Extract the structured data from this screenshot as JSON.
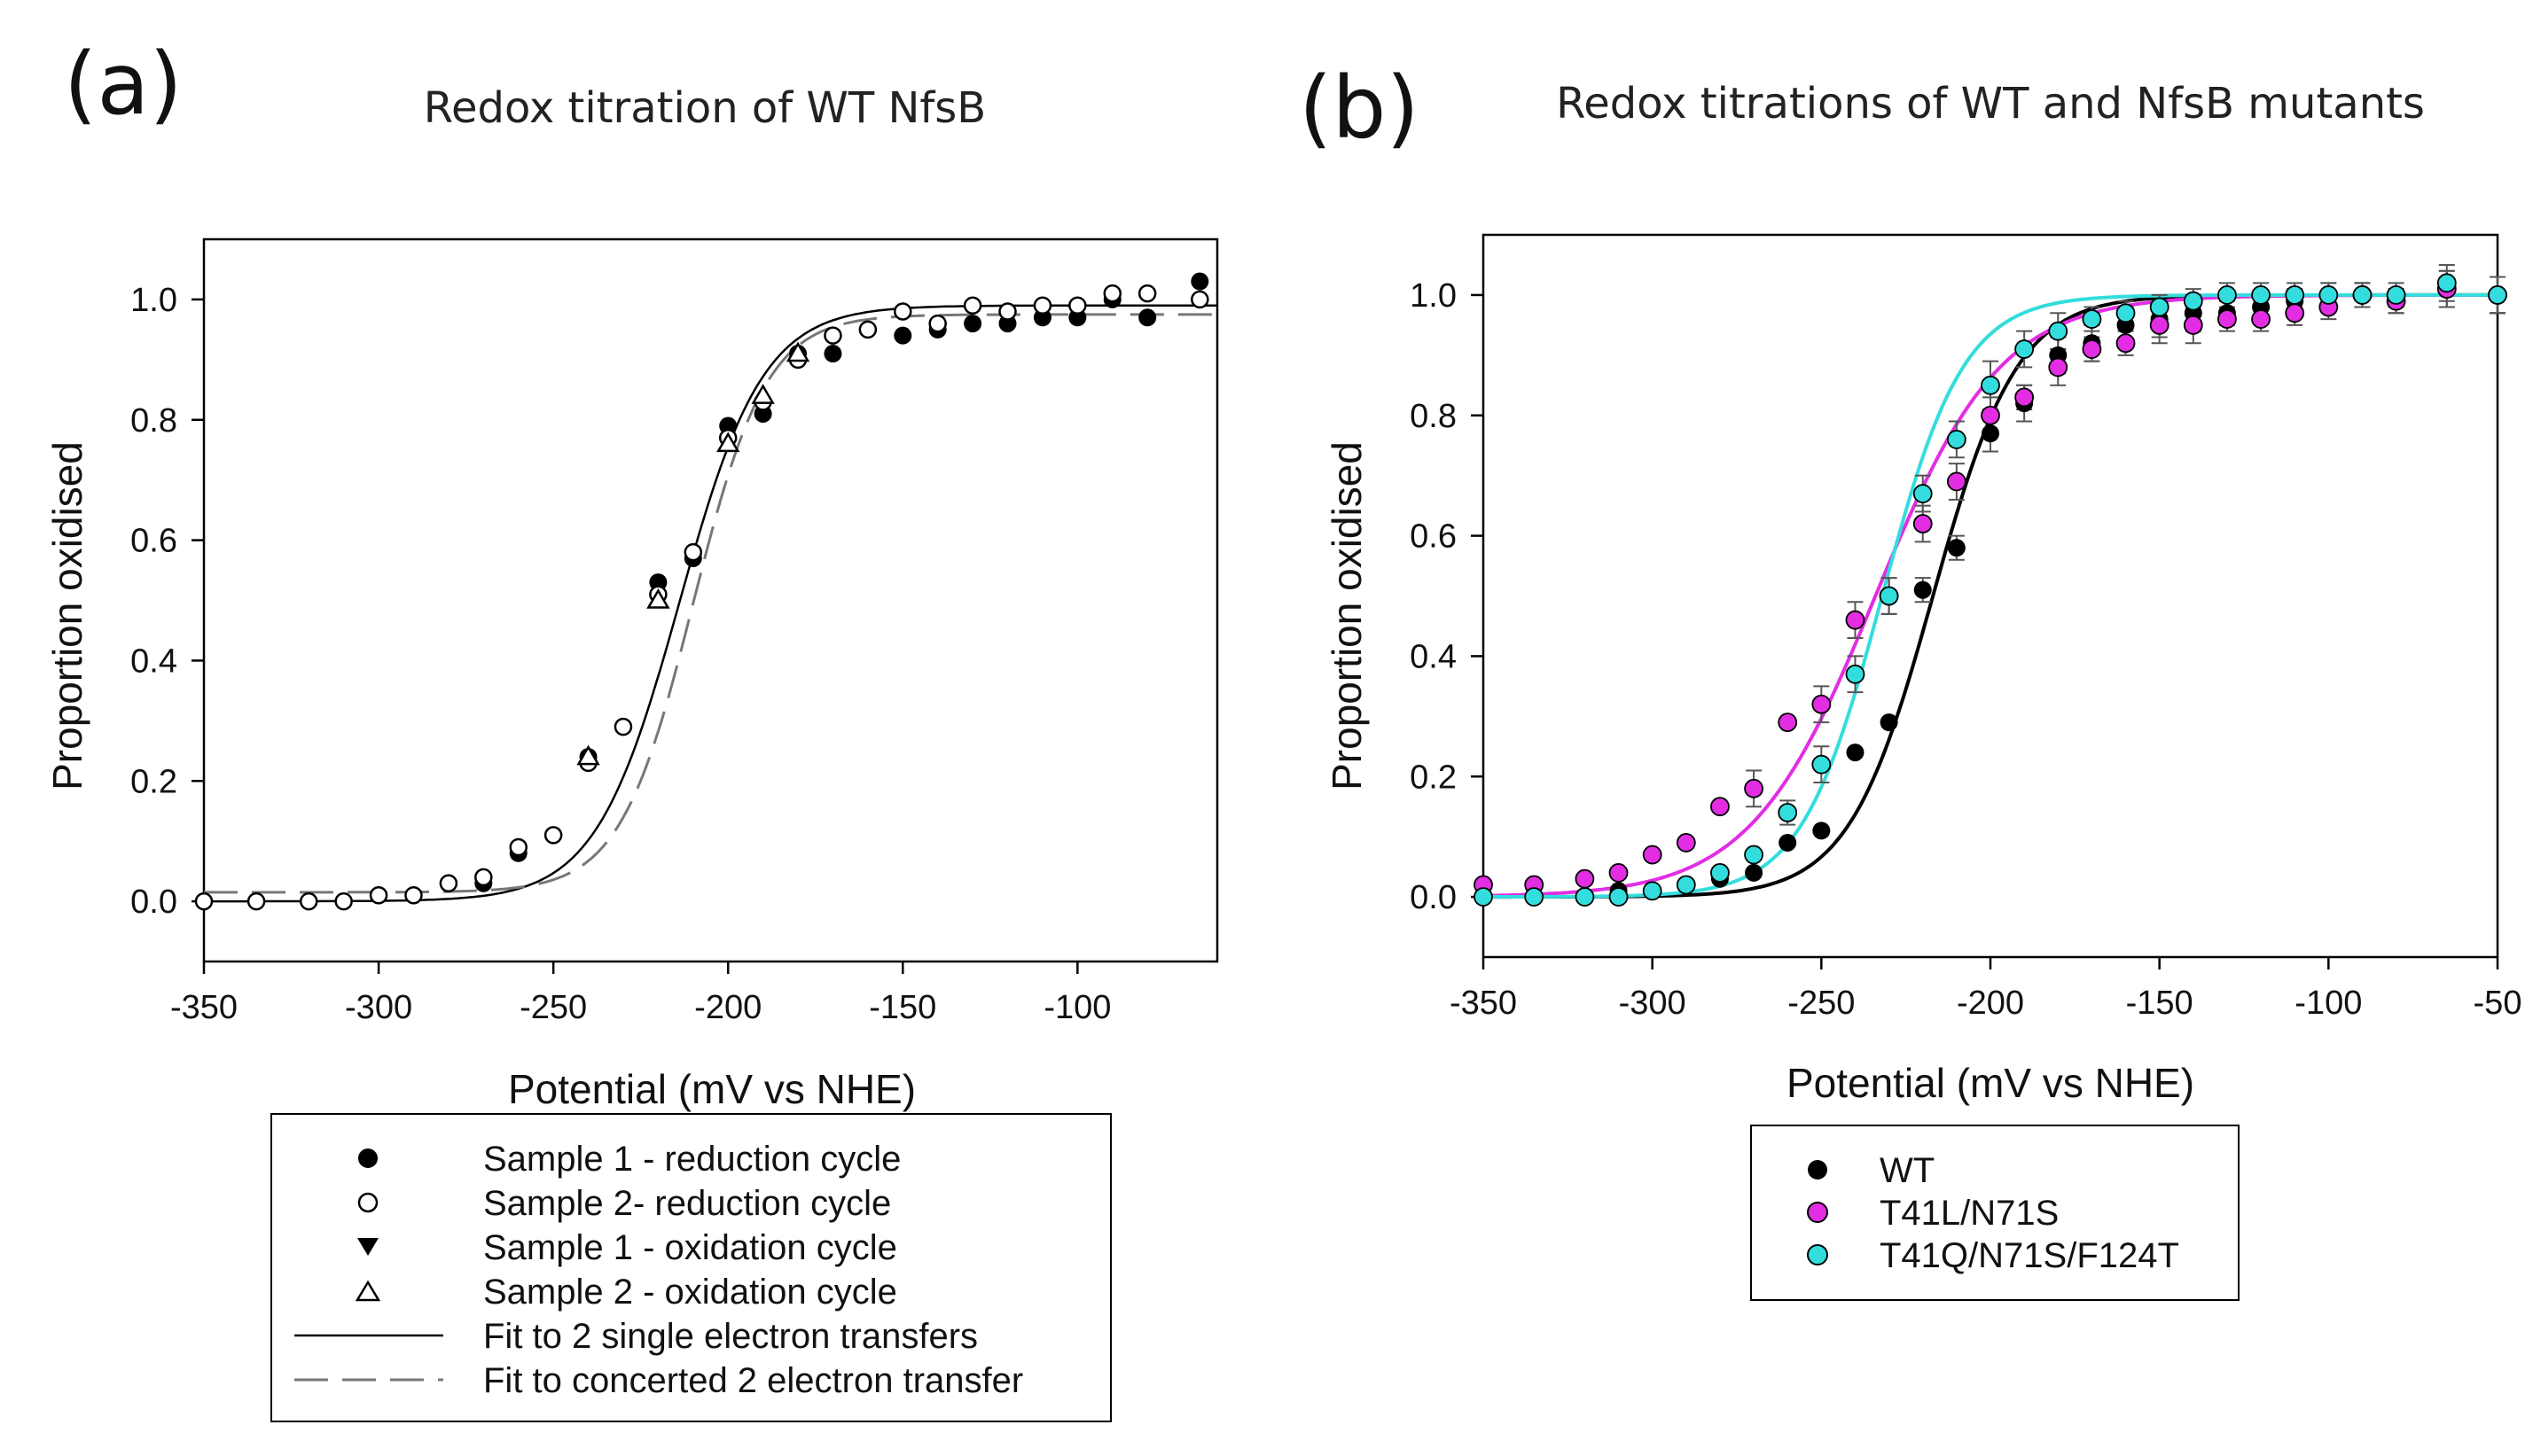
{
  "chart_data": [
    {
      "panel": "(a)",
      "type": "scatter",
      "title": "Redox titration of WT NfsB",
      "xlabel": "Potential (mV vs NHE)",
      "ylabel": "Proportion oxidised",
      "xlim": [
        -350,
        -60
      ],
      "ylim": [
        -0.1,
        1.1
      ],
      "xticks": [
        -350,
        -300,
        -250,
        -200,
        -150,
        -100
      ],
      "yticks": [
        0.0,
        0.2,
        0.4,
        0.6,
        0.8,
        1.0
      ],
      "series": [
        {
          "name": "Sample 1 - reduction cycle",
          "marker": "filled-circle",
          "color": "#000000",
          "x": [
            -350,
            -335,
            -320,
            -310,
            -300,
            -290,
            -280,
            -270,
            -260,
            -250,
            -240,
            -230,
            -220,
            -210,
            -200,
            -190,
            -180,
            -170,
            -150,
            -140,
            -130,
            -120,
            -110,
            -100,
            -90,
            -80,
            -65
          ],
          "y": [
            0.0,
            0.0,
            0.0,
            0.0,
            0.01,
            0.01,
            0.03,
            0.03,
            0.08,
            0.11,
            0.24,
            0.29,
            0.53,
            0.57,
            0.79,
            0.81,
            0.91,
            0.91,
            0.94,
            0.95,
            0.96,
            0.96,
            0.97,
            0.97,
            1.0,
            0.97,
            1.03
          ]
        },
        {
          "name": "Sample 2-  reduction cycle",
          "marker": "open-circle",
          "color": "#000000",
          "x": [
            -350,
            -335,
            -320,
            -310,
            -300,
            -290,
            -280,
            -270,
            -260,
            -250,
            -240,
            -230,
            -220,
            -210,
            -200,
            -190,
            -180,
            -170,
            -160,
            -150,
            -140,
            -130,
            -120,
            -110,
            -100,
            -90,
            -80,
            -65
          ],
          "y": [
            0.0,
            0.0,
            0.0,
            0.0,
            0.01,
            0.01,
            0.03,
            0.04,
            0.09,
            0.11,
            0.23,
            0.29,
            0.51,
            0.58,
            0.77,
            0.83,
            0.9,
            0.94,
            0.95,
            0.98,
            0.96,
            0.99,
            0.98,
            0.99,
            0.99,
            1.01,
            1.01,
            1.0
          ]
        },
        {
          "name": "Sample 1 - oxidation cycle",
          "marker": "filled-triangle-down",
          "color": "#000000",
          "x": [],
          "y": []
        },
        {
          "name": "Sample 2 - oxidation cycle",
          "marker": "open-triangle-up",
          "color": "#000000",
          "x": [
            -240,
            -220,
            -200,
            -190,
            -180
          ],
          "y": [
            0.24,
            0.5,
            0.76,
            0.84,
            0.91
          ]
        },
        {
          "name": "Fit to 2 single electron transfers",
          "line": "solid",
          "color": "#000000",
          "midpoint": -214,
          "width": 12,
          "y_min": 0.0,
          "y_max": 0.99
        },
        {
          "name": "Fit to concerted 2 electron transfer",
          "line": "dashed",
          "color": "#777777",
          "midpoint": -210,
          "width": 10.5,
          "y_min": 0.015,
          "y_max": 0.975
        }
      ]
    },
    {
      "panel": "(b)",
      "type": "scatter",
      "title": "Redox titrations of WT and NfsB mutants",
      "xlabel": "Potential (mV vs NHE)",
      "ylabel": "Proportion oxidised",
      "xlim": [
        -350,
        -50
      ],
      "ylim": [
        -0.1,
        1.1
      ],
      "xticks": [
        -350,
        -300,
        -250,
        -200,
        -150,
        -100,
        -50
      ],
      "yticks": [
        0.0,
        0.2,
        0.4,
        0.6,
        0.8,
        1.0
      ],
      "series": [
        {
          "name": "WT",
          "marker": "filled-circle",
          "color": "#000000",
          "x": [
            -350,
            -335,
            -320,
            -310,
            -300,
            -290,
            -280,
            -270,
            -260,
            -250,
            -240,
            -230,
            -220,
            -210,
            -200,
            -190,
            -180,
            -170,
            -160,
            -150,
            -140,
            -130,
            -120,
            -110,
            -100,
            -90,
            -80,
            -65,
            -50
          ],
          "y": [
            0.0,
            0.0,
            0.0,
            0.01,
            0.01,
            0.02,
            0.03,
            0.04,
            0.09,
            0.11,
            0.24,
            0.29,
            0.51,
            0.58,
            0.77,
            0.82,
            0.9,
            0.92,
            0.95,
            0.96,
            0.97,
            0.97,
            0.98,
            0.99,
            1.0,
            1.0,
            0.99,
            1.01,
            1.0
          ],
          "err": [
            0,
            0,
            0,
            0,
            0,
            0,
            0,
            0,
            0,
            0,
            0,
            0,
            0.02,
            0.02,
            0.03,
            0.03,
            0.03,
            0.03,
            0.03,
            0.03,
            0.03,
            0.02,
            0.02,
            0.02,
            0.02,
            0.02,
            0.02,
            0.03,
            0.03
          ],
          "fit": {
            "midpoint": -217,
            "width": 12.5
          }
        },
        {
          "name": "T41L/N71S",
          "marker": "filled-circle",
          "color": "#e22de2",
          "x": [
            -350,
            -335,
            -320,
            -310,
            -300,
            -290,
            -280,
            -270,
            -260,
            -250,
            -240,
            -230,
            -220,
            -210,
            -200,
            -190,
            -180,
            -170,
            -160,
            -150,
            -140,
            -130,
            -120,
            -110,
            -100,
            -90,
            -80,
            -65,
            -50
          ],
          "y": [
            0.02,
            0.02,
            0.03,
            0.04,
            0.07,
            0.09,
            0.15,
            0.18,
            0.29,
            0.32,
            0.46,
            0.5,
            0.62,
            0.69,
            0.8,
            0.83,
            0.88,
            0.91,
            0.92,
            0.95,
            0.95,
            0.96,
            0.96,
            0.97,
            0.98,
            1.0,
            0.99,
            1.01,
            1.0
          ],
          "err": [
            0,
            0,
            0,
            0,
            0,
            0,
            0,
            0.03,
            0,
            0.03,
            0.03,
            0.03,
            0.03,
            0.03,
            0.03,
            0.02,
            0.03,
            0.02,
            0.02,
            0.03,
            0.03,
            0.02,
            0.02,
            0.02,
            0.02,
            0.02,
            0.02,
            0.03,
            0.03
          ],
          "fit": {
            "midpoint": -234,
            "width": 18.5
          }
        },
        {
          "name": "T41Q/N71S/F124T",
          "marker": "filled-circle",
          "color": "#33dddd",
          "x": [
            -350,
            -335,
            -320,
            -310,
            -300,
            -290,
            -280,
            -270,
            -260,
            -250,
            -240,
            -230,
            -220,
            -210,
            -200,
            -190,
            -180,
            -170,
            -160,
            -150,
            -140,
            -130,
            -120,
            -110,
            -100,
            -90,
            -80,
            -65,
            -50
          ],
          "y": [
            0.0,
            0.0,
            0.0,
            0.0,
            0.01,
            0.02,
            0.04,
            0.07,
            0.14,
            0.22,
            0.37,
            0.5,
            0.67,
            0.76,
            0.85,
            0.91,
            0.94,
            0.96,
            0.97,
            0.98,
            0.99,
            1.0,
            1.0,
            1.0,
            1.0,
            1.0,
            1.0,
            1.02,
            1.0
          ],
          "err": [
            0,
            0,
            0,
            0,
            0,
            0,
            0,
            0,
            0.02,
            0.03,
            0.03,
            0.03,
            0.03,
            0.03,
            0.04,
            0.03,
            0.03,
            0.02,
            0.02,
            0.02,
            0.02,
            0.02,
            0.02,
            0.02,
            0.02,
            0.02,
            0.02,
            0.03,
            0.03
          ],
          "fit": {
            "midpoint": -232,
            "width": 12
          }
        }
      ]
    }
  ],
  "colors": {
    "axis": "#000000",
    "dash_fit": "#777777",
    "wt": "#000000",
    "t41l": "#e22de2",
    "t41q": "#33dddd"
  }
}
